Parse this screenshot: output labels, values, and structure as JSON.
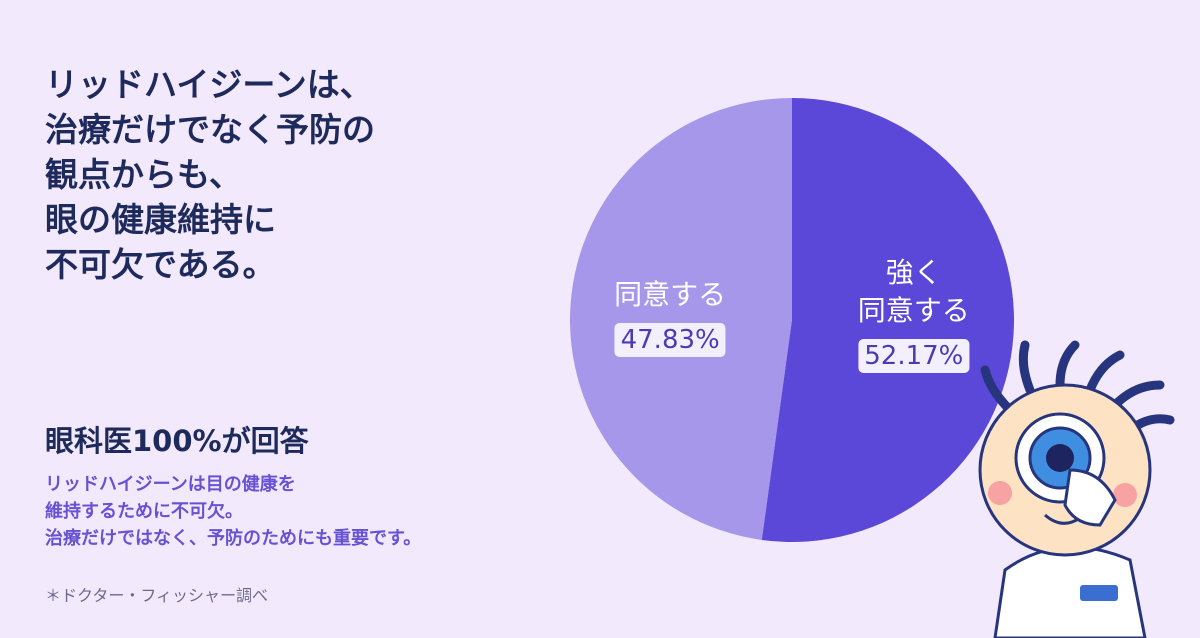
{
  "header": {
    "title_lines": [
      "リッドハイジーンは、",
      "治療だけでなく予防の",
      "観点からも、",
      "眼の健康維持に",
      "不可欠である。"
    ]
  },
  "chart_data": {
    "type": "pie",
    "categories": [
      "強く\n同意する",
      "同意する"
    ],
    "values": [
      52.17,
      47.83
    ],
    "value_labels": [
      "52.17%",
      "47.83%"
    ],
    "colors": [
      "#5b47d8",
      "#a797ea"
    ]
  },
  "summary": {
    "heading": "眼科医100%が回答",
    "lines": [
      "リッドハイジーンは目の健康を",
      "維持するために不可欠。",
      "治療だけではなく、予防のためにも重要です。"
    ]
  },
  "footnote": "＊ドクター・フィッシャー調べ"
}
